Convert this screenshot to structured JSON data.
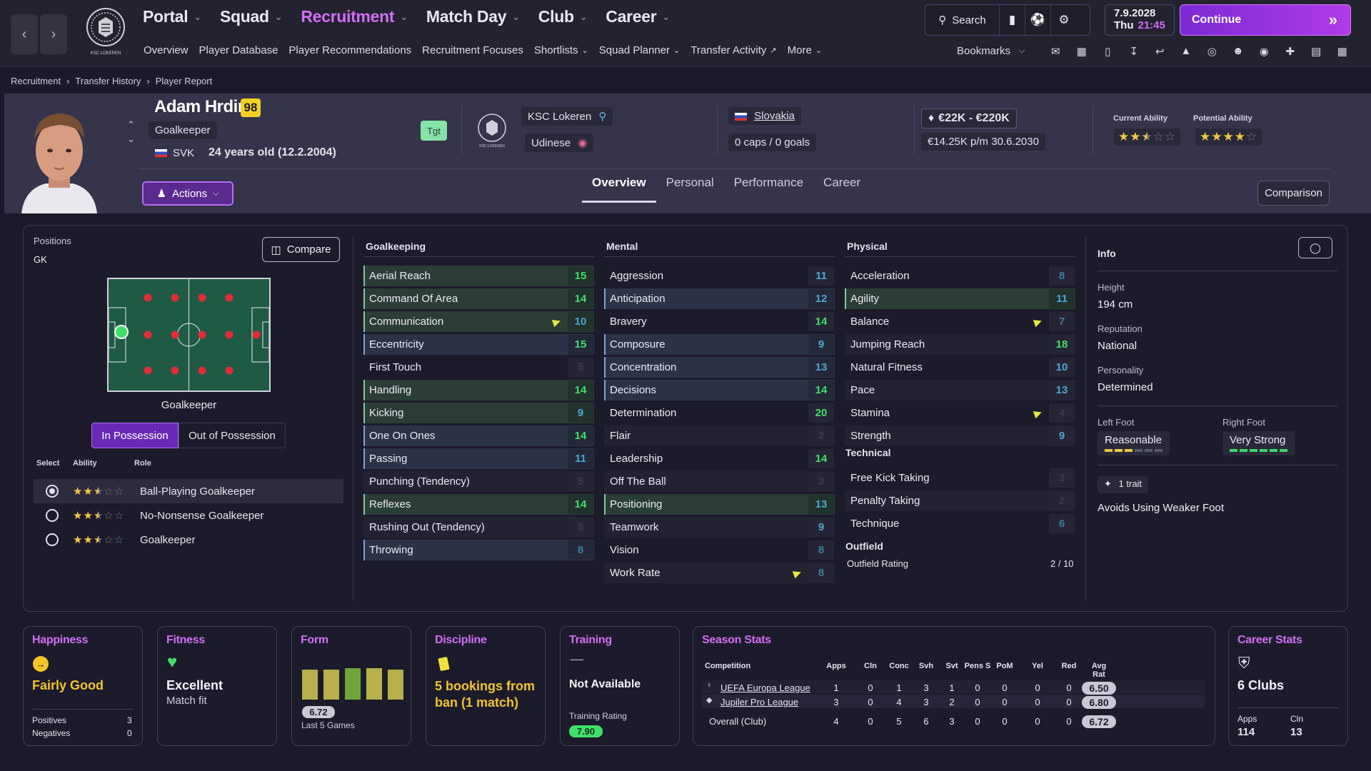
{
  "topnav": {
    "main": [
      {
        "label": "Portal",
        "active": false
      },
      {
        "label": "Squad",
        "active": false
      },
      {
        "label": "Recruitment",
        "active": true
      },
      {
        "label": "Match Day",
        "active": false
      },
      {
        "label": "Club",
        "active": false
      },
      {
        "label": "Career",
        "active": false
      }
    ],
    "sub": [
      {
        "label": "Overview"
      },
      {
        "label": "Player Database"
      },
      {
        "label": "Player Recommendations"
      },
      {
        "label": "Recruitment Focuses"
      },
      {
        "label": "Shortlists"
      },
      {
        "label": "Squad Planner"
      },
      {
        "label": "Transfer Activity"
      },
      {
        "label": "More"
      }
    ],
    "search_label": "Search",
    "date": "7.9.2028",
    "day": "Thu",
    "time": "21:45",
    "continue_label": "Continue",
    "bookmarks_label": "Bookmarks",
    "club_crest_text": "KSC LOKEREN"
  },
  "breadcrumb": [
    "Recruitment",
    "Transfer History",
    "Player Report"
  ],
  "player": {
    "name": "Adam Hrdina",
    "ca_badge": "98",
    "position": "Goalkeeper",
    "nationality_code": "SVK",
    "age_dob": "24 years old (12.2.2004)",
    "tgt": "Tgt",
    "club": "KSC Lokeren",
    "loan_club": "Udinese",
    "nation": "Slovakia",
    "caps": "0 caps / 0 goals",
    "value": "€22K - €220K",
    "contract": "€14.25K p/m 30.6.2030",
    "current_ability_label": "Current Ability",
    "potential_ability_label": "Potential Ability",
    "current_ability_stars": 2.5,
    "potential_ability_stars": 4,
    "actions_label": "Actions",
    "comparison_label": "Comparison"
  },
  "tabs": [
    "Overview",
    "Personal",
    "Performance",
    "Career"
  ],
  "positions": {
    "label": "Positions",
    "value": "GK",
    "compare_label": "Compare",
    "pitch_caption": "Goalkeeper",
    "in_possession": "In Possession",
    "out_possession": "Out of Possession",
    "headers": {
      "select": "Select",
      "ability": "Ability",
      "role": "Role"
    },
    "roles": [
      {
        "name": "Ball-Playing Goalkeeper",
        "stars": 2.5,
        "selected": true
      },
      {
        "name": "No-Nonsense Goalkeeper",
        "stars": 2.5,
        "selected": false
      },
      {
        "name": "Goalkeeper",
        "stars": 2.5,
        "selected": false
      }
    ]
  },
  "attributes": {
    "goalkeeping": {
      "title": "Goalkeeping",
      "items": [
        {
          "name": "Aerial Reach",
          "value": 15,
          "hl": "green"
        },
        {
          "name": "Command Of Area",
          "value": 14,
          "hl": "green"
        },
        {
          "name": "Communication",
          "value": 10,
          "hl": "green",
          "flag": true
        },
        {
          "name": "Eccentricity",
          "value": 15,
          "hl": "blue"
        },
        {
          "name": "First Touch",
          "value": 5,
          "hl": "none"
        },
        {
          "name": "Handling",
          "value": 14,
          "hl": "green"
        },
        {
          "name": "Kicking",
          "value": 9,
          "hl": "green"
        },
        {
          "name": "One On Ones",
          "value": 14,
          "hl": "blue"
        },
        {
          "name": "Passing",
          "value": 11,
          "hl": "blue"
        },
        {
          "name": "Punching (Tendency)",
          "value": 5,
          "hl": "none"
        },
        {
          "name": "Reflexes",
          "value": 14,
          "hl": "green"
        },
        {
          "name": "Rushing Out (Tendency)",
          "value": 5,
          "hl": "none"
        },
        {
          "name": "Throwing",
          "value": 8,
          "hl": "blue"
        }
      ]
    },
    "mental": {
      "title": "Mental",
      "items": [
        {
          "name": "Aggression",
          "value": 11,
          "hl": "none"
        },
        {
          "name": "Anticipation",
          "value": 12,
          "hl": "blue"
        },
        {
          "name": "Bravery",
          "value": 14,
          "hl": "none"
        },
        {
          "name": "Composure",
          "value": 9,
          "hl": "blue"
        },
        {
          "name": "Concentration",
          "value": 13,
          "hl": "blue"
        },
        {
          "name": "Decisions",
          "value": 14,
          "hl": "blue"
        },
        {
          "name": "Determination",
          "value": 20,
          "hl": "none"
        },
        {
          "name": "Flair",
          "value": 2,
          "hl": "none"
        },
        {
          "name": "Leadership",
          "value": 14,
          "hl": "none"
        },
        {
          "name": "Off The Ball",
          "value": 3,
          "hl": "none"
        },
        {
          "name": "Positioning",
          "value": 13,
          "hl": "green"
        },
        {
          "name": "Teamwork",
          "value": 9,
          "hl": "none"
        },
        {
          "name": "Vision",
          "value": 8,
          "hl": "none"
        },
        {
          "name": "Work Rate",
          "value": 8,
          "hl": "none",
          "flag": true
        }
      ]
    },
    "physical": {
      "title": "Physical",
      "items": [
        {
          "name": "Acceleration",
          "value": 8,
          "hl": "none"
        },
        {
          "name": "Agility",
          "value": 11,
          "hl": "green"
        },
        {
          "name": "Balance",
          "value": 7,
          "hl": "none",
          "flag": true
        },
        {
          "name": "Jumping Reach",
          "value": 18,
          "hl": "none"
        },
        {
          "name": "Natural Fitness",
          "value": 10,
          "hl": "none"
        },
        {
          "name": "Pace",
          "value": 13,
          "hl": "none"
        },
        {
          "name": "Stamina",
          "value": 4,
          "hl": "none",
          "flag": true
        },
        {
          "name": "Strength",
          "value": 9,
          "hl": "none"
        }
      ]
    },
    "technical": {
      "title": "Technical",
      "items": [
        {
          "name": "Free Kick Taking",
          "value": 3,
          "hl": "none"
        },
        {
          "name": "Penalty Taking",
          "value": 2,
          "hl": "none"
        },
        {
          "name": "Technique",
          "value": 6,
          "hl": "none"
        }
      ]
    },
    "outfield": {
      "title": "Outfield",
      "label": "Outfield Rating",
      "value": "2 / 10"
    }
  },
  "info": {
    "title": "Info",
    "height_label": "Height",
    "height": "194 cm",
    "reputation_label": "Reputation",
    "reputation": "National",
    "personality_label": "Personality",
    "personality": "Determined",
    "left_foot_label": "Left Foot",
    "left_foot": "Reasonable",
    "left_foot_level": 3,
    "right_foot_label": "Right Foot",
    "right_foot": "Very Strong",
    "right_foot_level": 6,
    "trait_count": "1 trait",
    "trait": "Avoids Using Weaker Foot"
  },
  "cards": {
    "happiness": {
      "title": "Happiness",
      "value": "Fairly Good",
      "positives_label": "Positives",
      "positives": "3",
      "negatives_label": "Negatives",
      "negatives": "0"
    },
    "fitness": {
      "title": "Fitness",
      "value": "Excellent",
      "sub": "Match fit"
    },
    "form": {
      "title": "Form",
      "rating": "6.72",
      "caption": "Last 5 Games",
      "bars": [
        0.75,
        0.75,
        0.78,
        0.78,
        0.75
      ]
    },
    "discipline": {
      "title": "Discipline",
      "value": "5 bookings from ban (1 match)"
    },
    "training": {
      "title": "Training",
      "dash": "—",
      "value": "Not Available",
      "rating_label": "Training Rating",
      "rating": "7.90"
    },
    "season": {
      "title": "Season Stats",
      "headers": [
        "Competition",
        "Apps",
        "Cln",
        "Conc",
        "Svh",
        "Svt",
        "Pens S",
        "PoM",
        "Yel",
        "Red",
        "Avg Rat"
      ],
      "rows": [
        {
          "competition": "UEFA Europa League",
          "cells": [
            "1",
            "0",
            "1",
            "3",
            "1",
            "0",
            "0",
            "0",
            "0"
          ],
          "avg": "6.50"
        },
        {
          "competition": "Jupiler Pro League",
          "cells": [
            "3",
            "0",
            "4",
            "3",
            "2",
            "0",
            "0",
            "0",
            "0"
          ],
          "avg": "6.80"
        },
        {
          "competition": "Overall (Club)",
          "cells": [
            "4",
            "0",
            "5",
            "6",
            "3",
            "0",
            "0",
            "0",
            "0"
          ],
          "avg": "6.72"
        }
      ]
    },
    "career": {
      "title": "Career Stats",
      "value": "6 Clubs",
      "apps_label": "Apps",
      "apps": "114",
      "cln_label": "Cln",
      "cln": "13"
    }
  },
  "colors": {
    "accent": "#d06ef5",
    "green_val": "#3fe06a",
    "blue_val": "#4ea6cf",
    "dim_val": "#3a3a4e"
  }
}
